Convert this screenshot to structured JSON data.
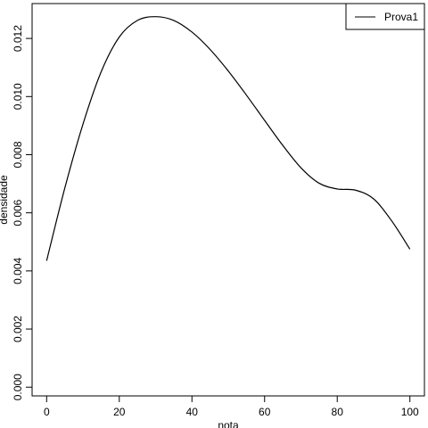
{
  "chart_data": {
    "type": "line",
    "title": "",
    "xlabel": "nota",
    "ylabel": "densidade",
    "xlim": [
      -4,
      104
    ],
    "ylim": [
      -0.0003,
      0.0132
    ],
    "xticks": [
      0,
      20,
      40,
      60,
      80,
      100
    ],
    "xtick_labels": [
      "0",
      "20",
      "40",
      "60",
      "80",
      "100"
    ],
    "yticks": [
      0.0,
      0.002,
      0.004,
      0.006,
      0.008,
      0.01,
      0.012
    ],
    "ytick_labels": [
      "0.000",
      "0.002",
      "0.004",
      "0.006",
      "0.008",
      "0.010",
      "0.012"
    ],
    "grid": false,
    "legend_position": "top-right",
    "series": [
      {
        "name": "Prova1",
        "color": "#000000",
        "x": [
          0,
          5,
          10,
          15,
          20,
          25,
          30,
          35,
          40,
          45,
          50,
          55,
          60,
          65,
          70,
          75,
          80,
          85,
          90,
          95,
          100
        ],
        "y": [
          0.00435,
          0.00685,
          0.00905,
          0.01085,
          0.01205,
          0.01262,
          0.01275,
          0.01262,
          0.01222,
          0.01162,
          0.01088,
          0.01005,
          0.00918,
          0.00832,
          0.00755,
          0.00702,
          0.00682,
          0.00678,
          0.00648,
          0.00572,
          0.00475
        ]
      }
    ]
  }
}
